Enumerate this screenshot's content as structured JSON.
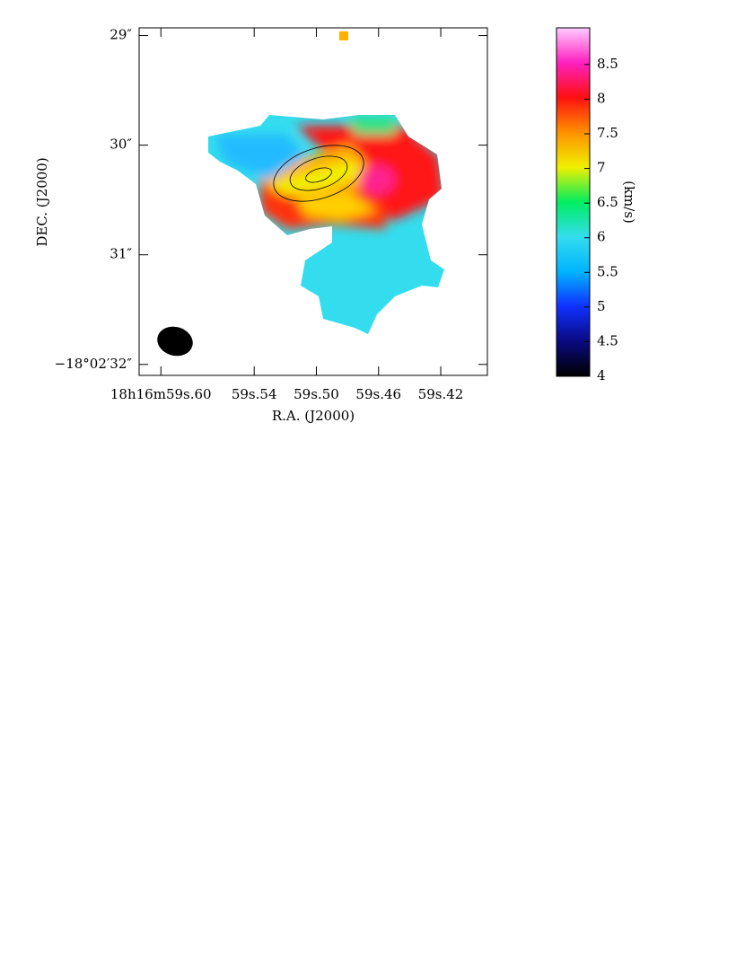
{
  "chart_data": {
    "type": "image",
    "xlabel": "R.A. (J2000)",
    "ylabel": "DEC. (J2000)",
    "xlim": [
      59.614,
      59.39
    ],
    "xticks": [
      {
        "value": 59.6,
        "label": "18h16m59s.60"
      },
      {
        "value": 59.54,
        "label": "59s.54"
      },
      {
        "value": 59.5,
        "label": "59s.50"
      },
      {
        "value": 59.46,
        "label": "59s.46"
      },
      {
        "value": 59.42,
        "label": "59s.42"
      }
    ],
    "ylim": [
      32.1,
      28.93
    ],
    "yticks": [
      {
        "value": 29,
        "label": "29″"
      },
      {
        "value": 30,
        "label": "30″"
      },
      {
        "value": 31,
        "label": "31″"
      },
      {
        "value": 32,
        "label": "−18°02′32″"
      }
    ],
    "colorbar": {
      "label": "(km/s)",
      "lim": [
        4,
        9.03
      ],
      "ticks": [
        4,
        4.5,
        5,
        5.5,
        6,
        6.5,
        7,
        7.5,
        8,
        8.5
      ],
      "colors": [
        "#000000",
        "#0a0a80",
        "#1030ff",
        "#00b4ff",
        "#33ddee",
        "#00ee60",
        "#f0f000",
        "#ff9000",
        "#ff1010",
        "#ff20c0",
        "#ffccff"
      ]
    }
  }
}
